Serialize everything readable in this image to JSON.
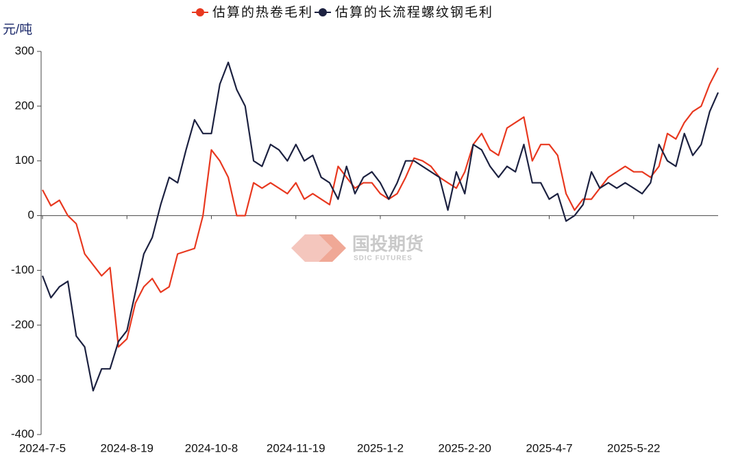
{
  "chart_data": {
    "type": "line",
    "y_label": "元/吨",
    "watermark": {
      "cn": "国投期货",
      "en": "SDIC FUTURES"
    },
    "categories": [
      "2024-7-5",
      null,
      null,
      null,
      null,
      null,
      null,
      null,
      null,
      null,
      "2024-8-19",
      null,
      null,
      null,
      null,
      null,
      null,
      null,
      null,
      null,
      "2024-10-8",
      null,
      null,
      null,
      null,
      null,
      null,
      null,
      null,
      null,
      "2024-11-19",
      null,
      null,
      null,
      null,
      null,
      null,
      null,
      null,
      null,
      "2025-1-2",
      null,
      null,
      null,
      null,
      null,
      null,
      null,
      null,
      null,
      "2025-2-20",
      null,
      null,
      null,
      null,
      null,
      null,
      null,
      null,
      null,
      "2025-4-7",
      null,
      null,
      null,
      null,
      null,
      null,
      null,
      null,
      null,
      "2025-5-22",
      null,
      null,
      null,
      null,
      null,
      null,
      null,
      null,
      null,
      null
    ],
    "series": [
      {
        "name": "估算的热卷毛利",
        "color": "#e8381f",
        "values": [
          47,
          18,
          28,
          0,
          -15,
          -70,
          -90,
          -110,
          -95,
          -240,
          -225,
          -160,
          -130,
          -115,
          -140,
          -130,
          -70,
          -65,
          -60,
          0,
          120,
          100,
          70,
          0,
          0,
          60,
          50,
          60,
          50,
          40,
          60,
          30,
          40,
          30,
          20,
          90,
          70,
          50,
          60,
          60,
          40,
          30,
          40,
          70,
          105,
          100,
          90,
          70,
          60,
          50,
          80,
          130,
          150,
          120,
          110,
          160,
          170,
          180,
          100,
          130,
          130,
          110,
          40,
          10,
          30,
          30,
          50,
          70,
          80,
          90,
          80,
          80,
          70,
          90,
          150,
          140,
          170,
          190,
          200,
          240,
          270
        ]
      },
      {
        "name": "估算的长流程螺纹钢毛利",
        "color": "#1c2140",
        "values": [
          -110,
          -150,
          -130,
          -120,
          -220,
          -240,
          -320,
          -280,
          -280,
          -230,
          -210,
          -140,
          -70,
          -40,
          20,
          70,
          60,
          120,
          175,
          150,
          150,
          240,
          280,
          230,
          200,
          100,
          90,
          130,
          120,
          100,
          130,
          100,
          110,
          70,
          60,
          30,
          90,
          40,
          70,
          80,
          60,
          30,
          60,
          100,
          100,
          90,
          80,
          70,
          10,
          80,
          40,
          130,
          120,
          90,
          70,
          90,
          80,
          130,
          60,
          60,
          30,
          40,
          -10,
          0,
          20,
          80,
          50,
          60,
          50,
          60,
          50,
          40,
          60,
          130,
          100,
          90,
          150,
          110,
          130,
          190,
          225
        ]
      }
    ],
    "ylim": [
      -400,
      300
    ],
    "yticks": [
      -400,
      -300,
      -200,
      -100,
      0,
      100,
      200,
      300
    ],
    "legend": "top"
  }
}
